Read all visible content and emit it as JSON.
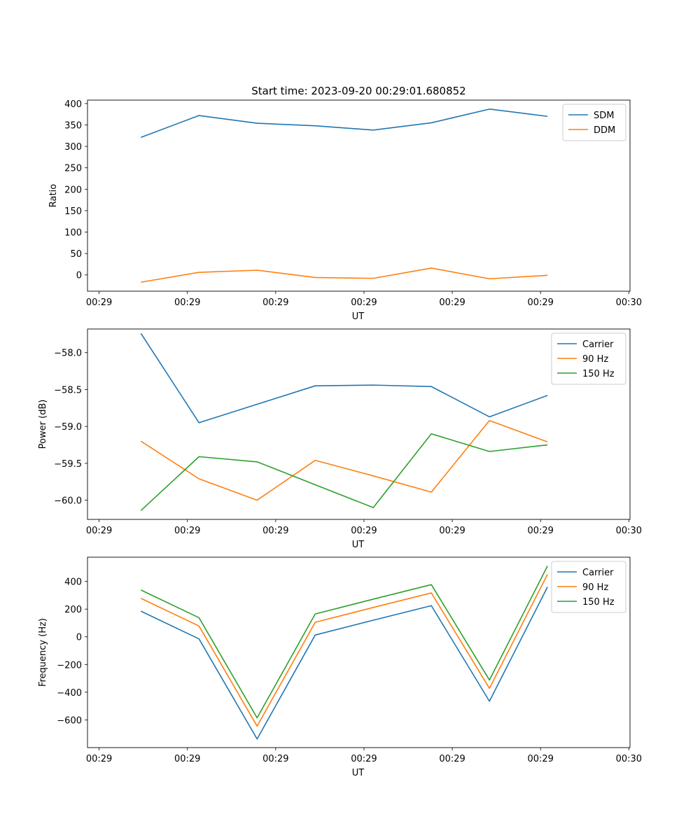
{
  "chart_data": [
    {
      "type": "line",
      "title": "Start time: 2023-09-20 00:29:01.680852",
      "xlabel": "UT",
      "ylabel": "Ratio",
      "xticks": [
        "00:29",
        "00:29",
        "00:29",
        "00:29",
        "00:29",
        "00:29",
        "00:30"
      ],
      "yticks": [
        0,
        50,
        100,
        150,
        200,
        250,
        300,
        350,
        400
      ],
      "ylim": [
        -38,
        408
      ],
      "legend_position": "top-right",
      "series": [
        {
          "name": "SDM",
          "color": "#1f77b4",
          "values": [
            321,
            372,
            354,
            348,
            338,
            355,
            387,
            370
          ]
        },
        {
          "name": "DDM",
          "color": "#ff7f0e",
          "values": [
            -17,
            6,
            11,
            -6,
            -8,
            16,
            -9,
            -1
          ]
        }
      ]
    },
    {
      "type": "line",
      "title": "",
      "xlabel": "UT",
      "ylabel": "Power (dB)",
      "xticks": [
        "00:29",
        "00:29",
        "00:29",
        "00:29",
        "00:29",
        "00:29",
        "00:30"
      ],
      "yticks": [
        -58.0,
        -58.5,
        -59.0,
        -59.5,
        -60.0
      ],
      "ytick_labels": [
        "−58.0",
        "−58.5",
        "−59.0",
        "−59.5",
        "−60.0"
      ],
      "ylim": [
        -60.26,
        -57.68
      ],
      "legend_position": "top-right",
      "series": [
        {
          "name": "Carrier",
          "color": "#1f77b4",
          "values": [
            -57.74,
            -58.95,
            -58.7,
            -58.45,
            -58.44,
            -58.46,
            -58.87,
            -58.58
          ]
        },
        {
          "name": "90 Hz",
          "color": "#ff7f0e",
          "values": [
            -59.2,
            -59.71,
            -60.0,
            -59.46,
            -59.67,
            -59.89,
            -58.92,
            -59.21
          ]
        },
        {
          "name": "150 Hz",
          "color": "#2ca02c",
          "values": [
            -60.14,
            -59.41,
            -59.48,
            -59.79,
            -60.1,
            -59.1,
            -59.34,
            -59.25
          ]
        }
      ]
    },
    {
      "type": "line",
      "title": "",
      "xlabel": "UT",
      "ylabel": "Frequency (Hz)",
      "xticks": [
        "00:29",
        "00:29",
        "00:29",
        "00:29",
        "00:29",
        "00:29",
        "00:30"
      ],
      "yticks": [
        400,
        200,
        0,
        -200,
        -400,
        -600
      ],
      "ytick_labels": [
        "400",
        "200",
        "0",
        "−200",
        "−400",
        "−600"
      ],
      "ylim": [
        -800,
        575
      ],
      "legend_position": "top-right",
      "series": [
        {
          "name": "Carrier",
          "color": "#1f77b4",
          "values": [
            185,
            -15,
            -738,
            13,
            120,
            225,
            -465,
            360
          ]
        },
        {
          "name": "90 Hz",
          "color": "#ff7f0e",
          "values": [
            278,
            78,
            -645,
            105,
            212,
            317,
            -372,
            452
          ]
        },
        {
          "name": "150 Hz",
          "color": "#2ca02c",
          "values": [
            338,
            138,
            -585,
            165,
            272,
            377,
            -312,
            512
          ]
        }
      ]
    }
  ]
}
